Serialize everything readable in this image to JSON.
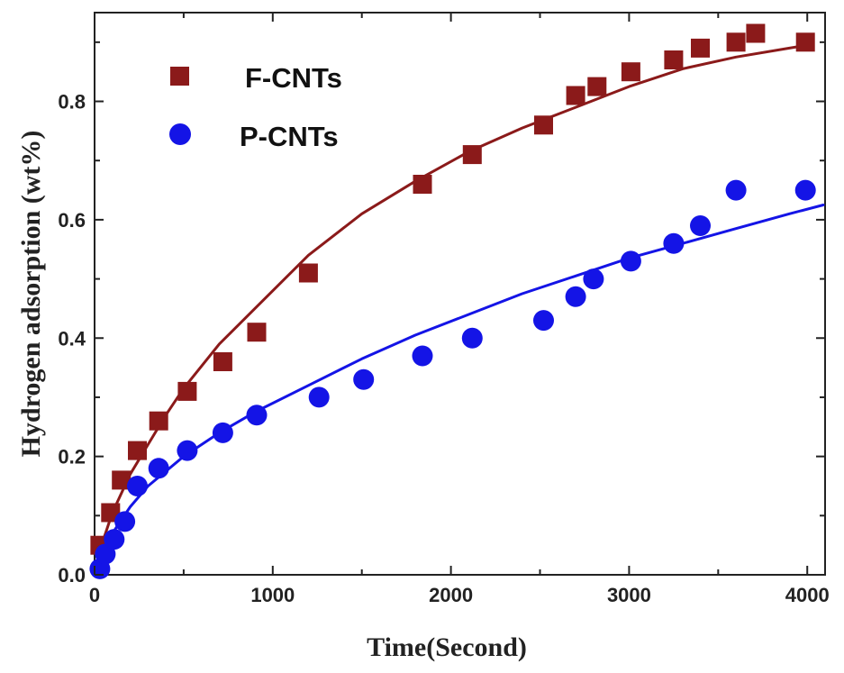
{
  "chart_data": {
    "type": "scatter",
    "title": "",
    "xlabel": "Time(Second)",
    "ylabel": "Hydrogen adsorption (wt%)",
    "xlim": [
      0,
      4100
    ],
    "ylim": [
      0,
      0.95
    ],
    "xticks": [
      0,
      1000,
      2000,
      3000,
      4000
    ],
    "xtick_labels": [
      "0",
      "1000",
      "2000",
      "3000",
      "4000"
    ],
    "yticks": [
      0.0,
      0.2,
      0.4,
      0.6,
      0.8
    ],
    "ytick_labels": [
      "0.0",
      "0.2",
      "0.4",
      "0.6",
      "0.8"
    ],
    "grid": false,
    "legend_position": "top-left",
    "series": [
      {
        "name": "F-CNTs",
        "marker": "square",
        "color": "#8b1a1a",
        "x": [
          30,
          90,
          150,
          240,
          360,
          520,
          720,
          910,
          1200,
          1840,
          2120,
          2520,
          2700,
          2820,
          3010,
          3250,
          3400,
          3600,
          3710,
          3990
        ],
        "y": [
          0.05,
          0.105,
          0.16,
          0.21,
          0.26,
          0.31,
          0.36,
          0.41,
          0.51,
          0.66,
          0.71,
          0.76,
          0.81,
          0.825,
          0.85,
          0.87,
          0.89,
          0.9,
          0.915,
          0.9
        ]
      },
      {
        "name": "P-CNTs",
        "marker": "circle",
        "color": "#1414e6",
        "x": [
          30,
          60,
          110,
          170,
          240,
          360,
          520,
          720,
          910,
          1260,
          1510,
          1840,
          2120,
          2520,
          2700,
          2800,
          3010,
          3250,
          3400,
          3600,
          3990
        ],
        "y": [
          0.01,
          0.035,
          0.06,
          0.09,
          0.15,
          0.18,
          0.21,
          0.24,
          0.27,
          0.3,
          0.33,
          0.37,
          0.4,
          0.43,
          0.47,
          0.5,
          0.53,
          0.56,
          0.59,
          0.65,
          0.65
        ]
      }
    ],
    "fit_curves": [
      {
        "series": "F-CNTs",
        "color": "#8b1a1a",
        "x": [
          0,
          50,
          100,
          200,
          300,
          400,
          500,
          700,
          900,
          1200,
          1500,
          1800,
          2100,
          2400,
          2700,
          3000,
          3300,
          3600,
          3900,
          4000
        ],
        "y": [
          0.0,
          0.06,
          0.105,
          0.17,
          0.22,
          0.27,
          0.315,
          0.39,
          0.45,
          0.54,
          0.61,
          0.665,
          0.715,
          0.755,
          0.79,
          0.825,
          0.855,
          0.875,
          0.89,
          0.895
        ]
      },
      {
        "series": "P-CNTs",
        "color": "#1414e6",
        "x": [
          0,
          50,
          100,
          200,
          300,
          400,
          500,
          700,
          900,
          1200,
          1500,
          1800,
          2100,
          2400,
          2700,
          3000,
          3300,
          3600,
          3900,
          4090
        ],
        "y": [
          0.0,
          0.04,
          0.07,
          0.115,
          0.15,
          0.175,
          0.2,
          0.24,
          0.275,
          0.32,
          0.365,
          0.405,
          0.44,
          0.475,
          0.505,
          0.535,
          0.56,
          0.585,
          0.61,
          0.625
        ]
      }
    ]
  }
}
